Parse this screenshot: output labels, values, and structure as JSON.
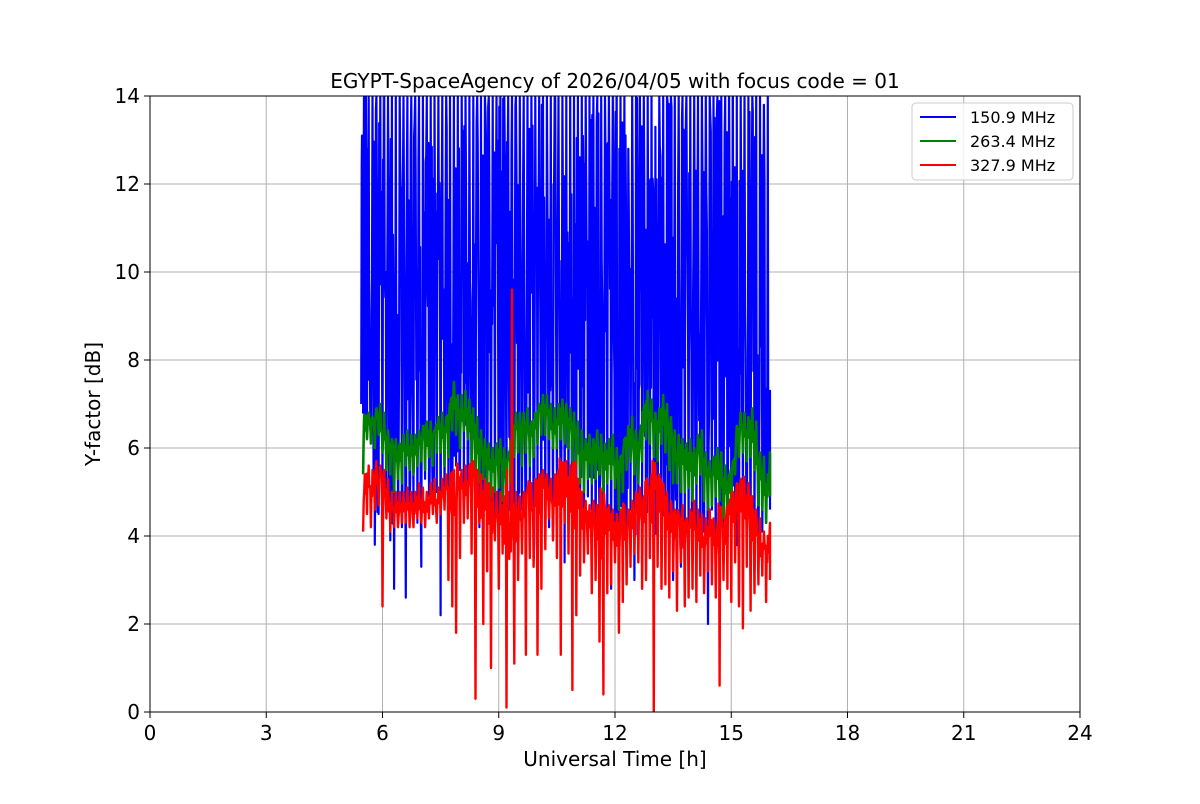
{
  "chart_data": {
    "type": "line",
    "title": "EGYPT-SpaceAgency of 2026/04/05 with focus code = 01",
    "xlabel": "Universal Time [h]",
    "ylabel": "Y-factor [dB]",
    "xlim": [
      0,
      24
    ],
    "ylim": [
      0,
      14
    ],
    "xticks": [
      0,
      3,
      6,
      9,
      12,
      15,
      18,
      21,
      24
    ],
    "yticks": [
      0,
      2,
      4,
      6,
      8,
      10,
      12,
      14
    ],
    "grid": true,
    "legend_position": "top-right",
    "series": [
      {
        "name": "150.9 MHz",
        "color": "#0000ff",
        "x": [
          5.45,
          5.5,
          5.55,
          5.6,
          5.7,
          5.8,
          5.9,
          6.0,
          6.1,
          6.2,
          6.3,
          6.4,
          6.5,
          6.6,
          6.7,
          6.8,
          6.9,
          7.0,
          7.1,
          7.2,
          7.3,
          7.4,
          7.5,
          7.6,
          7.7,
          7.8,
          7.9,
          8.0,
          8.1,
          8.2,
          8.3,
          8.4,
          8.5,
          8.6,
          8.7,
          8.8,
          8.9,
          9.0,
          9.1,
          9.2,
          9.3,
          9.4,
          9.5,
          9.6,
          9.7,
          9.8,
          9.9,
          10.0,
          10.1,
          10.2,
          10.3,
          10.4,
          10.5,
          10.6,
          10.7,
          10.8,
          10.9,
          11.0,
          11.1,
          11.2,
          11.3,
          11.4,
          11.5,
          11.6,
          11.7,
          11.8,
          11.9,
          12.0,
          12.1,
          12.2,
          12.3,
          12.4,
          12.5,
          12.6,
          12.7,
          12.8,
          12.9,
          13.0,
          13.1,
          13.2,
          13.3,
          13.4,
          13.5,
          13.6,
          13.7,
          13.8,
          13.9,
          14.0,
          14.1,
          14.2,
          14.3,
          14.4,
          14.5,
          14.6,
          14.7,
          14.8,
          14.9,
          15.0,
          15.1,
          15.2,
          15.3,
          15.4,
          15.5,
          15.6,
          15.7,
          15.8,
          15.9,
          16.0
        ],
        "y_low": [
          7.0,
          6.8,
          6.5,
          6.6,
          6.3,
          3.8,
          4.5,
          4.8,
          4.6,
          3.9,
          2.8,
          4.6,
          4.2,
          2.6,
          4.5,
          4.7,
          4.3,
          3.3,
          5.3,
          4.9,
          4.6,
          5.0,
          2.2,
          4.8,
          5.1,
          5.2,
          5.6,
          5.5,
          4.7,
          5.2,
          5.0,
          4.8,
          4.2,
          4.4,
          3.2,
          4.6,
          4.1,
          3.1,
          4.3,
          4.8,
          4.6,
          3.5,
          3.4,
          4.6,
          4.2,
          4.8,
          3.4,
          5.3,
          4.6,
          4.8,
          4.2,
          3.9,
          5.3,
          4.9,
          3.4,
          4.8,
          4.0,
          4.4,
          3.8,
          4.4,
          4.9,
          4.6,
          3.7,
          4.4,
          4.2,
          4.0,
          2.8,
          3.6,
          4.1,
          3.6,
          3.8,
          4.6,
          3.0,
          4.5,
          4.8,
          3.2,
          3.5,
          3.9,
          4.0,
          3.6,
          4.4,
          3.8,
          3.0,
          4.1,
          3.3,
          4.3,
          3.8,
          4.2,
          3.5,
          3.7,
          4.1,
          2.0,
          4.6,
          3.9,
          3.1,
          4.0,
          3.8,
          4.4,
          3.6,
          2.5,
          3.9,
          4.0,
          3.4,
          3.2,
          3.5,
          4.1,
          4.3,
          4.6
        ],
        "y_high": [
          13.1,
          14.0,
          14.0,
          14.0,
          14.0,
          14.0,
          14.0,
          14.0,
          14.0,
          14.0,
          14.0,
          14.0,
          14.0,
          14.0,
          14.0,
          14.0,
          14.0,
          14.0,
          14.0,
          14.0,
          14.0,
          14.0,
          14.0,
          14.0,
          14.0,
          14.0,
          14.0,
          14.0,
          14.0,
          14.0,
          14.0,
          14.0,
          14.0,
          14.0,
          14.0,
          14.0,
          14.0,
          14.0,
          14.0,
          14.0,
          14.0,
          14.0,
          14.0,
          14.0,
          14.0,
          14.0,
          14.0,
          14.0,
          14.0,
          14.0,
          14.0,
          14.0,
          14.0,
          14.0,
          14.0,
          14.0,
          14.0,
          14.0,
          14.0,
          14.0,
          14.0,
          14.0,
          14.0,
          14.0,
          14.0,
          14.0,
          14.0,
          14.0,
          14.0,
          14.0,
          12.8,
          14.0,
          14.0,
          14.0,
          14.0,
          14.0,
          14.0,
          13.3,
          14.0,
          14.0,
          14.0,
          14.0,
          14.0,
          14.0,
          14.0,
          14.0,
          14.0,
          14.0,
          14.0,
          14.0,
          14.0,
          14.0,
          14.0,
          14.0,
          14.0,
          14.0,
          14.0,
          14.0,
          14.0,
          14.0,
          14.0,
          14.0,
          14.0,
          14.0,
          14.0,
          13.8,
          14.0,
          7.3
        ]
      },
      {
        "name": "263.4 MHz",
        "color": "#008000",
        "x": [
          5.5,
          5.6,
          5.7,
          5.8,
          5.9,
          6.0,
          6.1,
          6.2,
          6.3,
          6.4,
          6.5,
          6.6,
          6.7,
          6.8,
          6.9,
          7.0,
          7.1,
          7.2,
          7.3,
          7.4,
          7.5,
          7.6,
          7.7,
          7.8,
          7.9,
          8.0,
          8.1,
          8.2,
          8.3,
          8.4,
          8.5,
          8.6,
          8.7,
          8.8,
          8.9,
          9.0,
          9.1,
          9.2,
          9.3,
          9.4,
          9.5,
          9.6,
          9.7,
          9.8,
          9.9,
          10.0,
          10.1,
          10.2,
          10.3,
          10.4,
          10.5,
          10.6,
          10.7,
          10.8,
          10.9,
          11.0,
          11.1,
          11.2,
          11.3,
          11.4,
          11.5,
          11.6,
          11.7,
          11.8,
          11.9,
          12.0,
          12.1,
          12.2,
          12.3,
          12.4,
          12.5,
          12.6,
          12.7,
          12.8,
          12.9,
          13.0,
          13.1,
          13.2,
          13.3,
          13.4,
          13.5,
          13.6,
          13.7,
          13.8,
          13.9,
          14.0,
          14.1,
          14.2,
          14.3,
          14.4,
          14.5,
          14.6,
          14.7,
          14.8,
          14.9,
          15.0,
          15.1,
          15.2,
          15.3,
          15.4,
          15.5,
          15.6,
          15.7,
          15.8,
          15.9,
          16.0
        ],
        "y": [
          6.5,
          6.6,
          6.5,
          6.6,
          6.7,
          6.4,
          6.0,
          5.9,
          5.9,
          5.8,
          5.9,
          6.0,
          6.0,
          5.9,
          6.1,
          6.2,
          6.3,
          6.2,
          6.1,
          6.4,
          6.5,
          6.3,
          6.6,
          7.0,
          6.9,
          6.8,
          6.9,
          6.7,
          6.5,
          6.3,
          6.0,
          5.9,
          5.8,
          5.6,
          5.7,
          5.8,
          5.6,
          5.5,
          5.9,
          6.4,
          6.3,
          6.4,
          6.5,
          6.2,
          6.4,
          6.7,
          6.9,
          6.8,
          6.7,
          6.5,
          6.6,
          6.8,
          6.7,
          6.6,
          6.4,
          6.2,
          6.0,
          5.8,
          5.9,
          5.8,
          6.0,
          5.9,
          5.7,
          5.8,
          5.9,
          5.6,
          5.4,
          5.8,
          6.1,
          6.3,
          6.0,
          5.9,
          6.5,
          6.9,
          6.7,
          6.4,
          6.5,
          6.8,
          6.6,
          6.3,
          6.0,
          5.9,
          5.8,
          5.7,
          5.8,
          5.6,
          5.9,
          6.0,
          5.5,
          5.3,
          5.4,
          5.6,
          5.5,
          5.2,
          5.0,
          5.3,
          6.1,
          6.4,
          6.5,
          6.3,
          6.5,
          6.2,
          5.5,
          5.3,
          4.9,
          5.5
        ],
        "y_low": [
          5.4,
          6.2,
          6.1,
          6.0,
          6.3,
          5.9,
          5.5,
          5.4,
          5.0,
          5.3,
          5.2,
          5.6,
          5.5,
          5.4,
          5.6,
          5.7,
          5.5,
          5.8,
          5.6,
          5.9,
          5.9,
          5.6,
          5.8,
          6.4,
          6.3,
          6.0,
          6.4,
          6.2,
          5.5,
          5.4,
          5.2,
          5.3,
          5.1,
          4.9,
          5.0,
          5.1,
          4.8,
          4.6,
          5.2,
          5.8,
          5.9,
          5.6,
          5.9,
          5.6,
          5.8,
          6.1,
          6.3,
          6.3,
          6.2,
          6.0,
          6.0,
          6.2,
          6.1,
          6.0,
          5.7,
          5.6,
          5.2,
          5.0,
          5.3,
          5.2,
          5.3,
          5.4,
          5.0,
          5.2,
          5.3,
          5.1,
          4.6,
          5.0,
          5.5,
          5.7,
          5.4,
          5.2,
          5.7,
          6.2,
          6.1,
          5.8,
          5.7,
          6.1,
          5.9,
          5.5,
          5.2,
          5.2,
          5.0,
          5.0,
          5.1,
          4.8,
          5.2,
          5.4,
          4.8,
          4.6,
          4.7,
          4.9,
          4.8,
          4.4,
          4.3,
          4.6,
          5.4,
          5.8,
          5.9,
          5.7,
          5.8,
          5.5,
          4.7,
          4.6,
          4.3,
          4.9
        ],
        "y_high": [
          6.7,
          6.8,
          6.7,
          6.9,
          7.0,
          6.8,
          6.4,
          6.2,
          6.2,
          6.1,
          6.3,
          6.4,
          6.3,
          6.3,
          6.4,
          6.5,
          6.6,
          6.6,
          6.4,
          6.7,
          6.8,
          6.7,
          7.0,
          7.5,
          7.2,
          7.2,
          7.3,
          7.1,
          6.9,
          6.7,
          6.4,
          6.2,
          6.1,
          6.0,
          6.1,
          6.2,
          6.0,
          5.9,
          6.3,
          6.8,
          6.8,
          6.8,
          6.9,
          6.6,
          6.8,
          7.0,
          7.2,
          7.2,
          7.0,
          6.9,
          7.0,
          7.1,
          7.0,
          6.9,
          6.8,
          6.6,
          6.4,
          6.2,
          6.3,
          6.2,
          6.4,
          6.3,
          6.1,
          6.2,
          6.3,
          6.0,
          5.8,
          6.2,
          6.5,
          6.7,
          6.4,
          6.3,
          6.9,
          7.3,
          7.1,
          6.8,
          6.9,
          7.2,
          7.0,
          6.7,
          6.4,
          6.3,
          6.2,
          6.1,
          6.2,
          6.0,
          6.3,
          6.4,
          5.9,
          5.7,
          5.8,
          6.0,
          5.9,
          5.6,
          5.4,
          5.7,
          6.5,
          6.8,
          6.8,
          6.7,
          6.9,
          6.6,
          5.9,
          5.8,
          5.4,
          5.9
        ]
      },
      {
        "name": "327.9 MHz",
        "color": "#ff0000",
        "x": [
          5.5,
          5.6,
          5.7,
          5.8,
          5.9,
          6.0,
          6.1,
          6.2,
          6.3,
          6.4,
          6.5,
          6.6,
          6.7,
          6.8,
          6.9,
          7.0,
          7.1,
          7.2,
          7.3,
          7.4,
          7.5,
          7.6,
          7.7,
          7.8,
          7.9,
          8.0,
          8.1,
          8.2,
          8.3,
          8.4,
          8.5,
          8.6,
          8.7,
          8.8,
          8.9,
          9.0,
          9.1,
          9.2,
          9.3,
          9.4,
          9.5,
          9.6,
          9.7,
          9.8,
          9.9,
          10.0,
          10.1,
          10.2,
          10.3,
          10.4,
          10.5,
          10.6,
          10.7,
          10.8,
          10.9,
          11.0,
          11.1,
          11.2,
          11.3,
          11.4,
          11.5,
          11.6,
          11.7,
          11.8,
          11.9,
          12.0,
          12.1,
          12.2,
          12.3,
          12.4,
          12.5,
          12.6,
          12.7,
          12.8,
          12.9,
          13.0,
          13.1,
          13.2,
          13.3,
          13.4,
          13.5,
          13.6,
          13.7,
          13.8,
          13.9,
          14.0,
          14.1,
          14.2,
          14.3,
          14.4,
          14.5,
          14.6,
          14.7,
          14.8,
          14.9,
          15.0,
          15.1,
          15.2,
          15.3,
          15.4,
          15.5,
          15.6,
          15.7,
          15.8,
          15.9,
          16.0
        ],
        "y": [
          5.0,
          5.2,
          5.1,
          5.3,
          5.4,
          5.1,
          4.9,
          4.6,
          4.7,
          4.6,
          4.6,
          4.7,
          4.6,
          4.6,
          4.8,
          4.7,
          4.6,
          4.8,
          4.9,
          4.7,
          4.9,
          5.0,
          5.0,
          5.1,
          5.2,
          5.1,
          5.2,
          5.2,
          5.3,
          5.1,
          5.0,
          4.9,
          4.8,
          4.7,
          4.6,
          4.6,
          4.5,
          4.6,
          4.7,
          4.6,
          4.5,
          4.6,
          4.7,
          4.8,
          4.9,
          5.0,
          5.1,
          5.0,
          4.9,
          5.0,
          5.1,
          5.2,
          5.3,
          5.2,
          5.1,
          4.9,
          4.6,
          4.4,
          4.3,
          4.4,
          4.3,
          4.4,
          4.2,
          4.3,
          4.2,
          4.1,
          4.2,
          4.3,
          4.2,
          4.4,
          4.6,
          4.7,
          4.5,
          4.8,
          5.0,
          5.1,
          5.0,
          4.8,
          4.6,
          4.4,
          4.2,
          4.1,
          4.3,
          4.0,
          4.2,
          4.4,
          4.2,
          4.1,
          4.0,
          4.2,
          4.0,
          3.9,
          4.1,
          4.0,
          4.3,
          4.6,
          4.8,
          4.9,
          4.7,
          4.8,
          4.5,
          4.2,
          4.0,
          3.7,
          3.6,
          3.9
        ],
        "y_low": [
          4.1,
          4.5,
          4.2,
          4.6,
          4.7,
          2.4,
          4.4,
          4.1,
          4.2,
          4.2,
          4.3,
          4.3,
          4.2,
          4.2,
          4.4,
          4.3,
          4.2,
          4.4,
          4.5,
          4.3,
          4.5,
          4.6,
          3.0,
          2.4,
          1.8,
          3.5,
          4.3,
          4.4,
          3.6,
          0.3,
          4.3,
          2.0,
          3.2,
          1.0,
          3.9,
          2.8,
          3.6,
          0.1,
          3.8,
          1.1,
          3.0,
          3.6,
          1.3,
          3.5,
          3.3,
          1.3,
          2.8,
          3.7,
          4.4,
          3.9,
          3.5,
          1.3,
          4.3,
          3.6,
          0.5,
          2.2,
          3.1,
          3.4,
          3.6,
          2.7,
          3.0,
          1.6,
          0.4,
          2.7,
          2.9,
          3.4,
          1.8,
          2.5,
          2.9,
          3.3,
          3.6,
          3.4,
          2.8,
          3.0,
          3.5,
          0.0,
          3.3,
          2.8,
          2.9,
          2.6,
          3.2,
          2.3,
          3.4,
          2.4,
          2.6,
          2.8,
          2.5,
          3.1,
          2.7,
          3.2,
          2.9,
          2.6,
          0.6,
          3.0,
          2.8,
          2.5,
          3.4,
          2.4,
          1.9,
          3.3,
          2.3,
          2.7,
          2.9,
          3.1,
          2.5,
          3.0
        ],
        "y_high": [
          5.4,
          5.6,
          5.5,
          5.7,
          5.6,
          5.5,
          5.3,
          5.0,
          5.0,
          5.0,
          5.0,
          5.1,
          5.0,
          5.0,
          5.2,
          5.1,
          5.0,
          5.2,
          5.3,
          5.1,
          5.3,
          5.4,
          5.4,
          5.5,
          5.6,
          5.5,
          5.6,
          5.6,
          5.7,
          5.5,
          5.4,
          5.3,
          5.2,
          5.1,
          5.0,
          5.0,
          4.9,
          5.0,
          9.6,
          5.0,
          4.9,
          5.0,
          5.1,
          5.2,
          5.3,
          5.4,
          5.5,
          5.4,
          5.3,
          5.4,
          5.5,
          5.6,
          5.7,
          5.6,
          5.5,
          5.3,
          5.0,
          4.8,
          4.7,
          4.8,
          4.7,
          4.8,
          4.6,
          4.7,
          4.6,
          4.5,
          4.6,
          4.7,
          4.6,
          4.8,
          5.0,
          5.1,
          4.9,
          5.2,
          5.4,
          5.5,
          5.4,
          5.2,
          5.0,
          4.8,
          4.6,
          4.5,
          4.7,
          4.4,
          4.6,
          4.8,
          4.6,
          4.5,
          4.4,
          4.6,
          4.4,
          4.3,
          4.5,
          4.4,
          4.7,
          5.0,
          5.2,
          5.3,
          5.1,
          5.2,
          4.9,
          4.6,
          4.4,
          4.1,
          4.0,
          4.3
        ]
      }
    ]
  }
}
